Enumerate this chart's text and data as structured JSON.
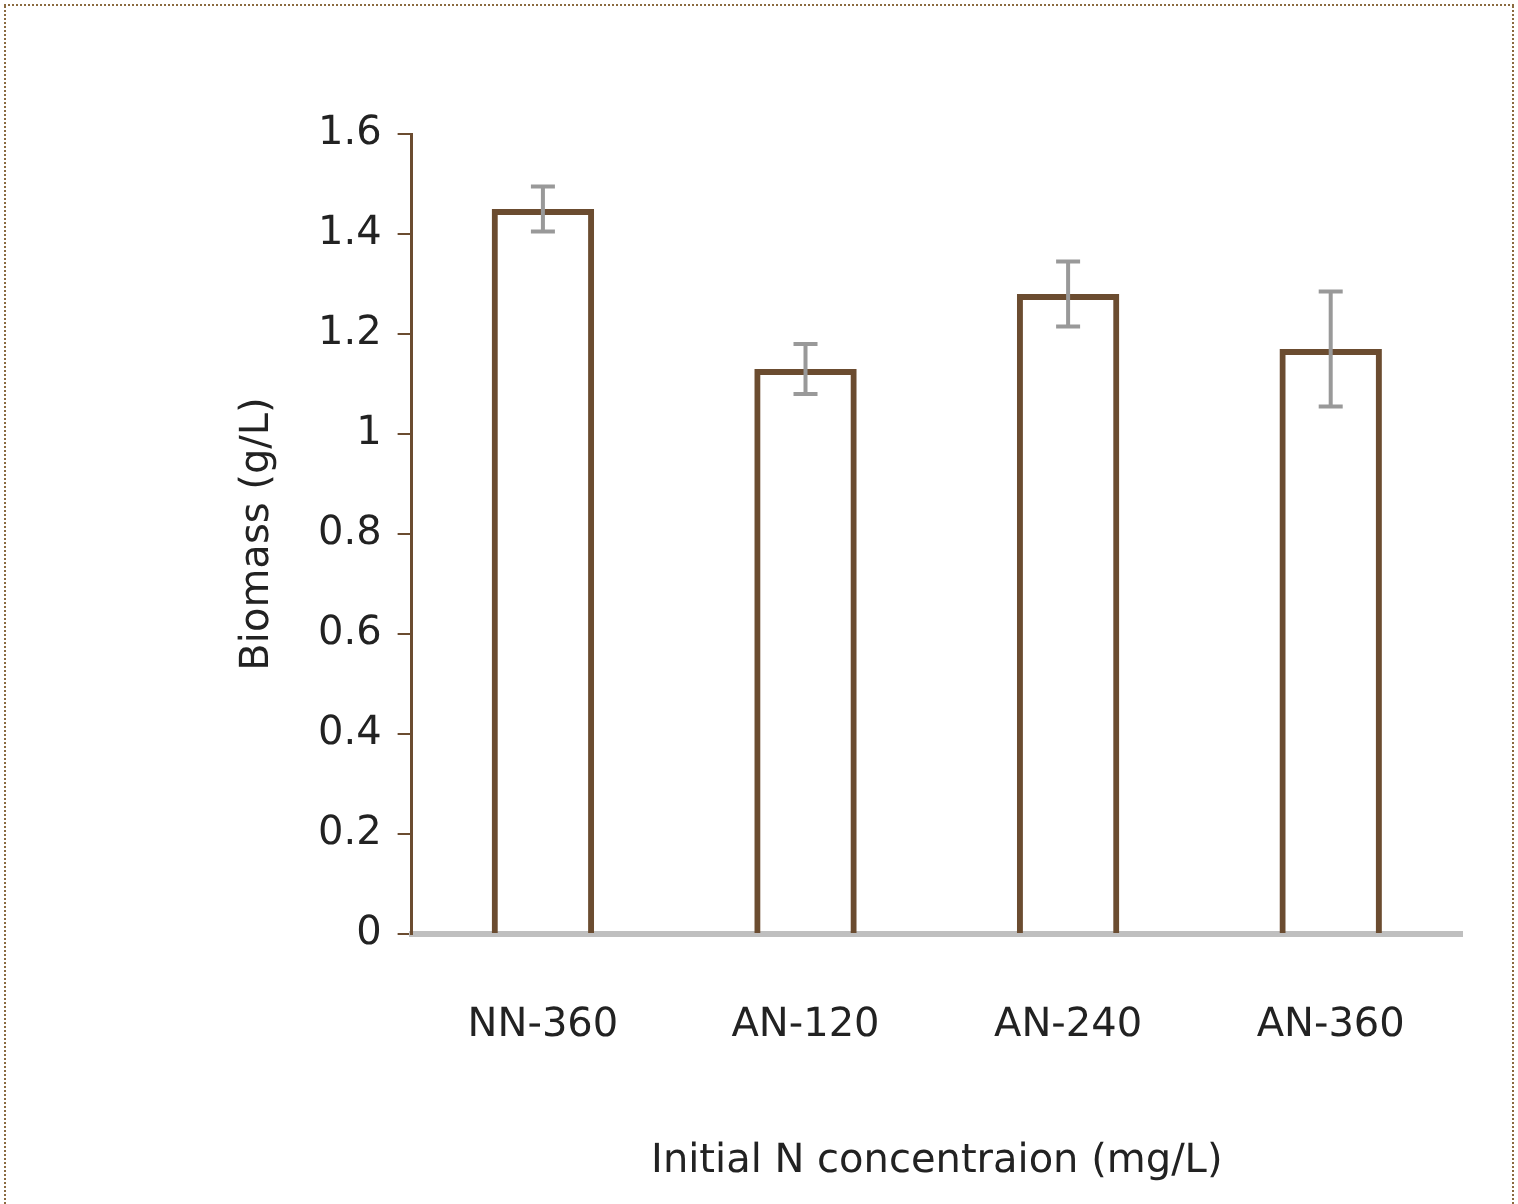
{
  "chart_data": {
    "type": "bar",
    "xlabel": "Initial N concentraion (mg/L)",
    "ylabel": "Biomass (g/L)",
    "categories": [
      "NN-360",
      "AN-120",
      "AN-240",
      "AN-360"
    ],
    "values": [
      1.45,
      1.13,
      1.28,
      1.17
    ],
    "errors": [
      0.045,
      0.05,
      0.065,
      0.115
    ],
    "color": "#6b4c30",
    "ylim": [
      0,
      1.6
    ],
    "yticks": [
      0,
      0.2,
      0.4,
      0.6,
      0.8,
      1,
      1.2,
      1.4,
      1.6
    ],
    "grid": false,
    "legend": false
  }
}
